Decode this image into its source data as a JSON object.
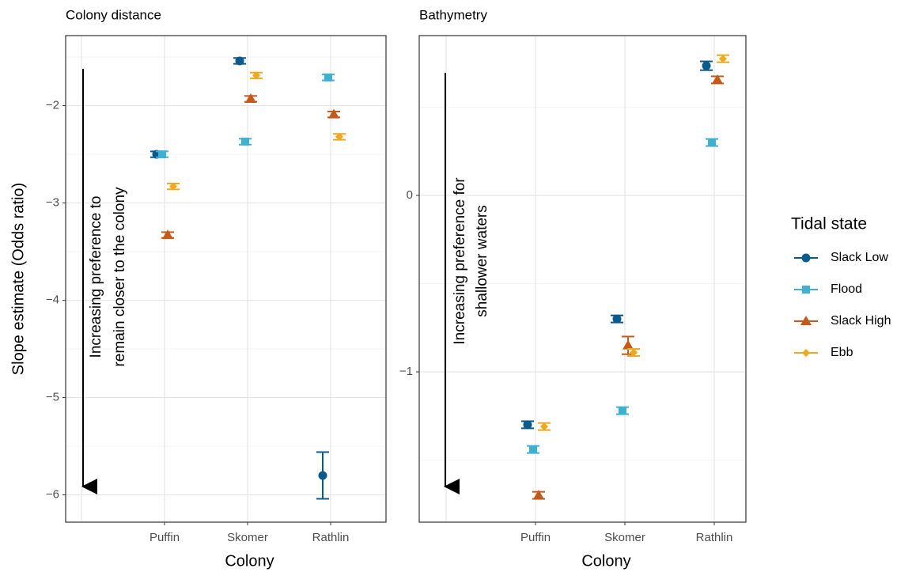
{
  "chart_data": [
    {
      "type": "pointrange",
      "title": "Colony distance",
      "xlabel": "Colony",
      "ylabel": "Slope estimate (Odds ratio)",
      "annotation": [
        "Increasing preference to",
        "remain closer to the colony"
      ],
      "categories": [
        null,
        "Puffin",
        "Skomer",
        "Rathlin"
      ],
      "ylim": [
        -6.28,
        -1.28
      ],
      "yticks": [
        {
          "value": -6,
          "label": "−6"
        },
        {
          "value": -5,
          "label": "−5"
        },
        {
          "value": -4,
          "label": "−4"
        },
        {
          "value": -3,
          "label": "−3"
        },
        {
          "value": -2,
          "label": "−2"
        }
      ],
      "minor_yticks": [
        -5.5,
        -4.5,
        -3.5,
        -2.5,
        -1.5
      ],
      "grid": true,
      "series": [
        {
          "values": [
            null,
            -2.5,
            -1.54,
            -5.8
          ],
          "errors": [
            null,
            0.03,
            0.03,
            0.24
          ]
        },
        {
          "values": [
            null,
            -2.5,
            -2.37,
            -1.71
          ],
          "errors": [
            null,
            0.03,
            0.03,
            0.03
          ]
        },
        {
          "values": [
            null,
            -3.33,
            -1.93,
            -2.09
          ],
          "errors": [
            null,
            0.03,
            0.03,
            0.03
          ]
        },
        {
          "values": [
            null,
            -2.83,
            -1.69,
            -2.32
          ],
          "errors": [
            null,
            0.03,
            0.03,
            0.03
          ]
        }
      ]
    },
    {
      "type": "pointrange",
      "title": "Bathymetry",
      "xlabel": "Colony",
      "annotation": [
        "Increasing preference for",
        "shallower waters"
      ],
      "categories": [
        null,
        "Puffin",
        "Skomer",
        "Rathlin"
      ],
      "ylim": [
        -1.852,
        0.906
      ],
      "yticks": [
        {
          "value": -1,
          "label": "−1"
        },
        0
      ],
      "minor_yticks": [
        -1.5,
        -0.5,
        0.5
      ],
      "grid": true,
      "series": [
        {
          "values": [
            null,
            -1.3,
            -0.7,
            0.735
          ],
          "errors": [
            null,
            0.02,
            0.02,
            0.025
          ]
        },
        {
          "values": [
            null,
            -1.44,
            -1.22,
            0.3
          ],
          "errors": [
            null,
            0.02,
            0.02,
            0.02
          ]
        },
        {
          "values": [
            null,
            -1.7,
            -0.85,
            0.655
          ],
          "errors": [
            null,
            0.02,
            0.05,
            0.02
          ]
        },
        {
          "values": [
            null,
            -1.31,
            -0.89,
            0.775
          ],
          "errors": [
            null,
            0.02,
            0.02,
            0.02
          ]
        }
      ]
    }
  ],
  "legend": {
    "title": "Tidal state",
    "entries": [
      {
        "name": "Slack Low",
        "color": "#0b5a8c",
        "shape": "circle"
      },
      {
        "name": "Flood",
        "color": "#3fb0cf",
        "shape": "square"
      },
      {
        "name": "Slack High",
        "color": "#c4591a",
        "shape": "triangle"
      },
      {
        "name": "Ebb",
        "color": "#f0a81c",
        "shape": "diamond"
      }
    ]
  }
}
